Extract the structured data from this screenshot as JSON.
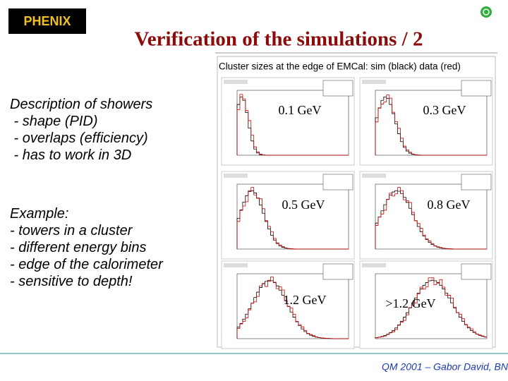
{
  "header": {
    "logo": "PHENIX",
    "title": "Verification of the simulations / 2"
  },
  "left": {
    "description": [
      "Description of showers",
      " - shape (PID)",
      " - overlaps (efficiency)",
      " - has to work in 3D"
    ],
    "example": [
      "Example:",
      "- towers in a cluster",
      "- different energy bins",
      "- edge of the calorimeter",
      "- sensitive to depth!"
    ]
  },
  "figure": {
    "title": "Cluster sizes at the edge of EMCal: sim (black) data (red)",
    "panels": [
      {
        "label": "0.1 GeV"
      },
      {
        "label": "0.3 GeV"
      },
      {
        "label": "0.5 GeV"
      },
      {
        "label": "0.8 GeV"
      },
      {
        "label": "1.2 GeV"
      },
      {
        "label": ">1.2 GeV"
      }
    ]
  },
  "footer": "QM 2001 – Gabor David, BN"
}
